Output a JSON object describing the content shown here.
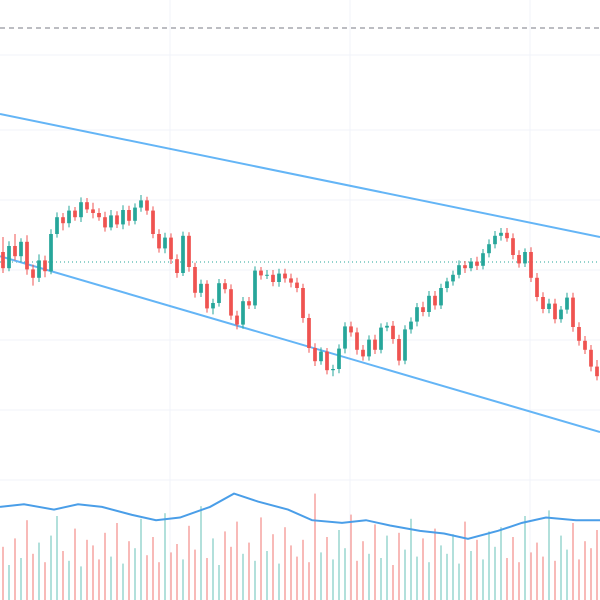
{
  "chart_data": {
    "type": "candlestick",
    "grid": true,
    "colors": {
      "up": "#26a69a",
      "down": "#ef5350",
      "up_volume": "#9fd8d2",
      "down_volume": "#f6a9a7",
      "channel": "#64b5f6",
      "volume_ma": "#4a9ee8",
      "dotted_level": "#26a69a",
      "dashed_level": "#787b86",
      "grid": "#f0f3fa"
    },
    "x_range": [
      0,
      100
    ],
    "price_range": [
      0,
      100
    ],
    "volume_range": [
      0,
      100
    ],
    "candles": [
      {
        "o": 58.0,
        "h": 60.5,
        "l": 54.5,
        "c": 55.3
      },
      {
        "o": 55.3,
        "h": 59.8,
        "l": 54.8,
        "c": 59.0
      },
      {
        "o": 59.0,
        "h": 61.0,
        "l": 56.6,
        "c": 57.3
      },
      {
        "o": 57.3,
        "h": 60.3,
        "l": 56.3,
        "c": 59.7
      },
      {
        "o": 59.7,
        "h": 60.8,
        "l": 54.2,
        "c": 55.1
      },
      {
        "o": 55.1,
        "h": 55.9,
        "l": 52.4,
        "c": 53.7
      },
      {
        "o": 53.7,
        "h": 57.6,
        "l": 53.0,
        "c": 56.6
      },
      {
        "o": 56.6,
        "h": 57.4,
        "l": 53.8,
        "c": 54.8
      },
      {
        "o": 54.8,
        "h": 61.8,
        "l": 54.3,
        "c": 61.0
      },
      {
        "o": 61.0,
        "h": 64.6,
        "l": 60.4,
        "c": 63.8
      },
      {
        "o": 63.8,
        "h": 64.5,
        "l": 61.6,
        "c": 62.8
      },
      {
        "o": 62.8,
        "h": 65.7,
        "l": 62.1,
        "c": 64.9
      },
      {
        "o": 64.9,
        "h": 65.5,
        "l": 63.2,
        "c": 63.8
      },
      {
        "o": 63.8,
        "h": 67.1,
        "l": 63.0,
        "c": 66.3
      },
      {
        "o": 66.3,
        "h": 67.0,
        "l": 64.5,
        "c": 65.1
      },
      {
        "o": 65.1,
        "h": 66.2,
        "l": 63.6,
        "c": 64.5
      },
      {
        "o": 64.5,
        "h": 65.3,
        "l": 63.2,
        "c": 63.8
      },
      {
        "o": 63.8,
        "h": 64.7,
        "l": 61.4,
        "c": 62.1
      },
      {
        "o": 62.1,
        "h": 65.0,
        "l": 61.6,
        "c": 64.1
      },
      {
        "o": 64.1,
        "h": 64.8,
        "l": 62.0,
        "c": 62.6
      },
      {
        "o": 62.6,
        "h": 65.8,
        "l": 61.8,
        "c": 65.0
      },
      {
        "o": 65.0,
        "h": 65.7,
        "l": 62.4,
        "c": 63.2
      },
      {
        "o": 63.2,
        "h": 66.1,
        "l": 62.6,
        "c": 65.4
      },
      {
        "o": 65.4,
        "h": 67.5,
        "l": 64.7,
        "c": 66.6
      },
      {
        "o": 66.6,
        "h": 67.2,
        "l": 64.2,
        "c": 64.9
      },
      {
        "o": 64.9,
        "h": 65.6,
        "l": 60.3,
        "c": 61.0
      },
      {
        "o": 61.0,
        "h": 61.8,
        "l": 57.9,
        "c": 58.6
      },
      {
        "o": 58.6,
        "h": 61.2,
        "l": 57.8,
        "c": 60.4
      },
      {
        "o": 60.4,
        "h": 61.1,
        "l": 56.0,
        "c": 56.8
      },
      {
        "o": 56.8,
        "h": 57.6,
        "l": 53.7,
        "c": 54.5
      },
      {
        "o": 54.5,
        "h": 61.4,
        "l": 54.0,
        "c": 60.7
      },
      {
        "o": 60.7,
        "h": 61.3,
        "l": 54.7,
        "c": 55.5
      },
      {
        "o": 55.5,
        "h": 56.2,
        "l": 50.4,
        "c": 51.2
      },
      {
        "o": 51.2,
        "h": 53.4,
        "l": 50.5,
        "c": 52.7
      },
      {
        "o": 52.7,
        "h": 53.3,
        "l": 47.9,
        "c": 48.6
      },
      {
        "o": 48.6,
        "h": 50.2,
        "l": 47.6,
        "c": 49.5
      },
      {
        "o": 49.5,
        "h": 53.5,
        "l": 48.9,
        "c": 52.8
      },
      {
        "o": 52.8,
        "h": 53.5,
        "l": 51.1,
        "c": 51.8
      },
      {
        "o": 51.8,
        "h": 52.6,
        "l": 46.7,
        "c": 47.4
      },
      {
        "o": 47.4,
        "h": 48.2,
        "l": 45.1,
        "c": 45.9
      },
      {
        "o": 45.9,
        "h": 50.5,
        "l": 45.2,
        "c": 49.8
      },
      {
        "o": 49.8,
        "h": 50.5,
        "l": 48.5,
        "c": 49.1
      },
      {
        "o": 49.1,
        "h": 55.6,
        "l": 48.5,
        "c": 54.9
      },
      {
        "o": 54.9,
        "h": 55.5,
        "l": 53.4,
        "c": 54.1
      },
      {
        "o": 54.1,
        "h": 55.0,
        "l": 53.5,
        "c": 54.2
      },
      {
        "o": 54.2,
        "h": 55.0,
        "l": 52.3,
        "c": 53.0
      },
      {
        "o": 53.0,
        "h": 55.2,
        "l": 52.2,
        "c": 54.4
      },
      {
        "o": 54.4,
        "h": 55.2,
        "l": 52.9,
        "c": 53.6
      },
      {
        "o": 53.6,
        "h": 54.4,
        "l": 52.1,
        "c": 52.9
      },
      {
        "o": 52.9,
        "h": 53.7,
        "l": 51.3,
        "c": 52.0
      },
      {
        "o": 52.0,
        "h": 52.7,
        "l": 46.2,
        "c": 47.0
      },
      {
        "o": 47.0,
        "h": 47.7,
        "l": 41.2,
        "c": 42.0
      },
      {
        "o": 42.0,
        "h": 42.8,
        "l": 39.0,
        "c": 39.8
      },
      {
        "o": 39.8,
        "h": 42.1,
        "l": 39.2,
        "c": 41.4
      },
      {
        "o": 41.4,
        "h": 42.0,
        "l": 37.6,
        "c": 38.3
      },
      {
        "o": 38.3,
        "h": 39.2,
        "l": 37.3,
        "c": 38.5
      },
      {
        "o": 38.5,
        "h": 42.6,
        "l": 37.8,
        "c": 41.9
      },
      {
        "o": 41.9,
        "h": 46.3,
        "l": 41.1,
        "c": 45.6
      },
      {
        "o": 45.6,
        "h": 46.4,
        "l": 43.9,
        "c": 44.6
      },
      {
        "o": 44.6,
        "h": 45.4,
        "l": 40.9,
        "c": 41.7
      },
      {
        "o": 41.7,
        "h": 42.5,
        "l": 39.9,
        "c": 40.6
      },
      {
        "o": 40.6,
        "h": 44.1,
        "l": 39.9,
        "c": 43.4
      },
      {
        "o": 43.4,
        "h": 44.2,
        "l": 41.0,
        "c": 41.7
      },
      {
        "o": 41.7,
        "h": 46.1,
        "l": 41.1,
        "c": 45.4
      },
      {
        "o": 45.4,
        "h": 46.3,
        "l": 44.8,
        "c": 45.7
      },
      {
        "o": 45.7,
        "h": 46.5,
        "l": 42.7,
        "c": 43.5
      },
      {
        "o": 43.5,
        "h": 44.2,
        "l": 39.1,
        "c": 39.9
      },
      {
        "o": 39.9,
        "h": 45.8,
        "l": 39.3,
        "c": 45.1
      },
      {
        "o": 45.1,
        "h": 47.1,
        "l": 44.4,
        "c": 46.4
      },
      {
        "o": 46.4,
        "h": 49.5,
        "l": 45.6,
        "c": 48.8
      },
      {
        "o": 48.8,
        "h": 49.7,
        "l": 47.3,
        "c": 48.0
      },
      {
        "o": 48.0,
        "h": 51.5,
        "l": 47.2,
        "c": 50.7
      },
      {
        "o": 50.7,
        "h": 51.5,
        "l": 48.4,
        "c": 49.1
      },
      {
        "o": 49.1,
        "h": 52.7,
        "l": 48.5,
        "c": 52.0
      },
      {
        "o": 52.0,
        "h": 53.7,
        "l": 51.3,
        "c": 53.1
      },
      {
        "o": 53.1,
        "h": 54.9,
        "l": 52.4,
        "c": 54.2
      },
      {
        "o": 54.2,
        "h": 56.6,
        "l": 53.6,
        "c": 55.8
      },
      {
        "o": 55.8,
        "h": 56.5,
        "l": 54.5,
        "c": 55.3
      },
      {
        "o": 55.3,
        "h": 57.0,
        "l": 54.8,
        "c": 56.4
      },
      {
        "o": 56.4,
        "h": 57.2,
        "l": 55.0,
        "c": 55.7
      },
      {
        "o": 55.7,
        "h": 58.5,
        "l": 55.1,
        "c": 57.8
      },
      {
        "o": 57.8,
        "h": 60.1,
        "l": 57.1,
        "c": 59.3
      },
      {
        "o": 59.3,
        "h": 61.5,
        "l": 58.6,
        "c": 60.7
      },
      {
        "o": 60.7,
        "h": 62.0,
        "l": 59.9,
        "c": 61.2
      },
      {
        "o": 61.2,
        "h": 62.0,
        "l": 59.7,
        "c": 60.3
      },
      {
        "o": 60.3,
        "h": 61.1,
        "l": 56.8,
        "c": 57.5
      },
      {
        "o": 57.5,
        "h": 58.3,
        "l": 55.4,
        "c": 56.1
      },
      {
        "o": 56.1,
        "h": 58.6,
        "l": 55.5,
        "c": 58.0
      },
      {
        "o": 58.0,
        "h": 58.8,
        "l": 53.0,
        "c": 53.7
      },
      {
        "o": 53.7,
        "h": 54.5,
        "l": 49.8,
        "c": 50.5
      },
      {
        "o": 50.5,
        "h": 51.3,
        "l": 47.8,
        "c": 48.5
      },
      {
        "o": 48.5,
        "h": 50.2,
        "l": 47.8,
        "c": 49.4
      },
      {
        "o": 49.4,
        "h": 50.2,
        "l": 46.1,
        "c": 46.8
      },
      {
        "o": 46.8,
        "h": 49.0,
        "l": 46.2,
        "c": 48.4
      },
      {
        "o": 48.4,
        "h": 51.2,
        "l": 47.7,
        "c": 50.4
      },
      {
        "o": 50.4,
        "h": 51.2,
        "l": 44.7,
        "c": 45.5
      },
      {
        "o": 45.5,
        "h": 46.3,
        "l": 42.4,
        "c": 43.2
      },
      {
        "o": 43.2,
        "h": 44.0,
        "l": 41.0,
        "c": 41.7
      },
      {
        "o": 41.7,
        "h": 42.5,
        "l": 38.1,
        "c": 38.9
      },
      {
        "o": 38.9,
        "h": 40.0,
        "l": 36.6,
        "c": 37.3
      }
    ],
    "volume": [
      38,
      25,
      44,
      30,
      57,
      33,
      41,
      27,
      46,
      60,
      35,
      28,
      51,
      24,
      43,
      39,
      29,
      48,
      31,
      55,
      26,
      42,
      37,
      58,
      32,
      45,
      27,
      62,
      34,
      40,
      29,
      53,
      36,
      67,
      30,
      44,
      25,
      49,
      38,
      56,
      33,
      41,
      28,
      59,
      35,
      47,
      26,
      52,
      39,
      31,
      43,
      27,
      76,
      34,
      45,
      29,
      50,
      37,
      61,
      28,
      42,
      33,
      54,
      30,
      46,
      25,
      48,
      36,
      58,
      31,
      44,
      27,
      51,
      39,
      33,
      47,
      26,
      56,
      35,
      43,
      29,
      49,
      38,
      52,
      30,
      45,
      27,
      60,
      34,
      41,
      31,
      64,
      28,
      46,
      36,
      55,
      29,
      42,
      37,
      50
    ],
    "volume_ma": [
      [
        0,
        35
      ],
      [
        4,
        36
      ],
      [
        9,
        34
      ],
      [
        13,
        36
      ],
      [
        17,
        35
      ],
      [
        22,
        32
      ],
      [
        26,
        30
      ],
      [
        30,
        31
      ],
      [
        35,
        35
      ],
      [
        39,
        40
      ],
      [
        43,
        37
      ],
      [
        48,
        34
      ],
      [
        52,
        30
      ],
      [
        57,
        29
      ],
      [
        61,
        30
      ],
      [
        65,
        28
      ],
      [
        70,
        26
      ],
      [
        74,
        25
      ],
      [
        78,
        23
      ],
      [
        83,
        26
      ],
      [
        87,
        29
      ],
      [
        91,
        31
      ],
      [
        96,
        30
      ],
      [
        100,
        30
      ]
    ]
  }
}
